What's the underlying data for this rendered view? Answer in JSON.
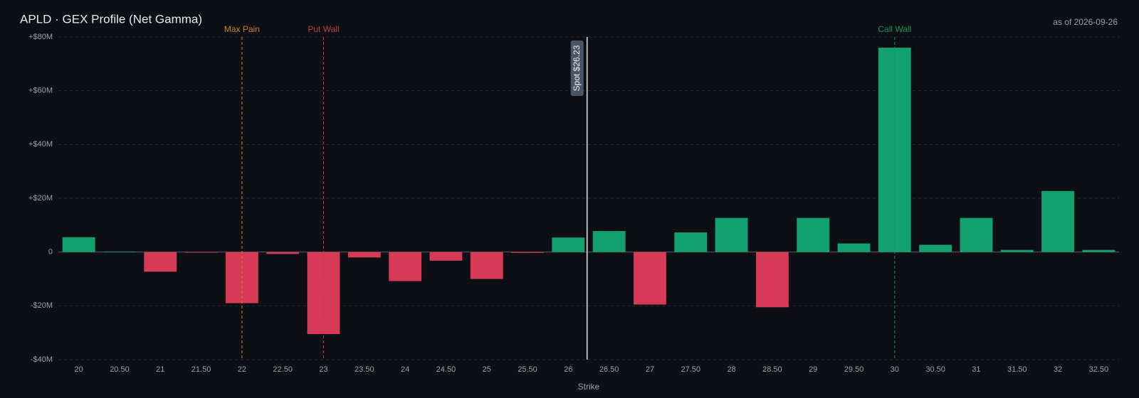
{
  "chart_data": {
    "type": "bar",
    "title": "APLD · GEX Profile (Net Gamma)",
    "subtitle": "as of 2026-09-26",
    "x_label": "Strike",
    "categories": [
      "20",
      "20.50",
      "21",
      "21.50",
      "22",
      "22.50",
      "23",
      "23.50",
      "24",
      "24.50",
      "25",
      "25.50",
      "26",
      "26.50",
      "27",
      "27.50",
      "28",
      "28.50",
      "29",
      "29.50",
      "30",
      "30.50",
      "31",
      "31.50",
      "32",
      "32.50"
    ],
    "values": [
      5.5,
      0.2,
      -7.3,
      -0.1,
      -19,
      -0.7,
      -30.5,
      -2,
      -10.8,
      -3.2,
      -10,
      -0.3,
      5.4,
      7.8,
      -19.5,
      7.3,
      12.7,
      -20.5,
      12.7,
      3.2,
      76,
      2.7,
      12.7,
      0.8,
      22.7,
      0.8
    ],
    "positive_color": "#12a272",
    "negative_color": "#d63a57",
    "ylim": [
      -40,
      80
    ],
    "yticks": [
      {
        "value": -40,
        "label": "-$40M"
      },
      {
        "value": -20,
        "label": "-$20M"
      },
      0,
      {
        "value": 20,
        "label": "+$20M"
      },
      {
        "value": 40,
        "label": "+$40M"
      },
      {
        "value": 60,
        "label": "+$60M"
      },
      {
        "value": 80,
        "label": "+$80M"
      }
    ],
    "grid": true,
    "markers": [
      {
        "label": "Max Pain",
        "x": 22,
        "color": "#c8861f"
      },
      {
        "label": "Put Wall",
        "x": 23,
        "color": "#c03a52"
      },
      {
        "label": "Call Wall",
        "x": 30,
        "color": "#16935f"
      }
    ],
    "spot": {
      "label": "Spot $26.23",
      "x": 26.23
    }
  }
}
